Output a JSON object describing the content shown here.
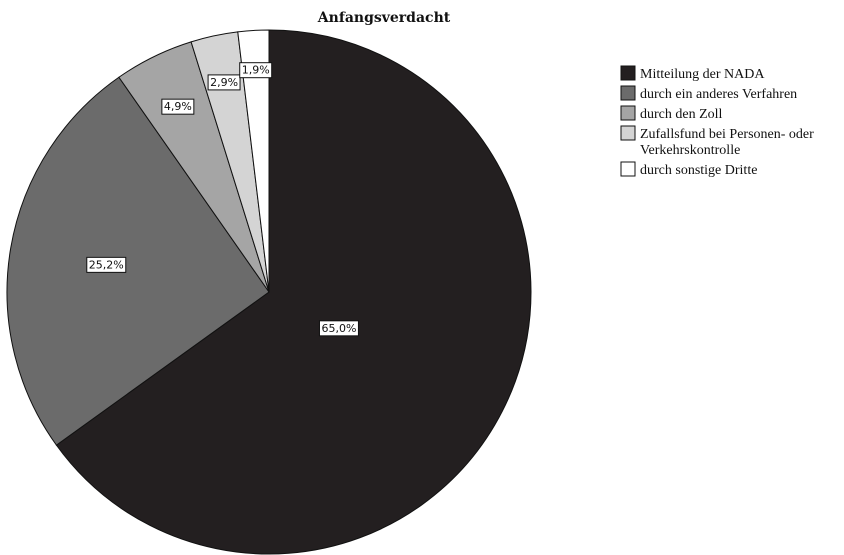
{
  "chart_data": {
    "type": "pie",
    "title": "Anfangsverdacht",
    "start_angle_deg": 0,
    "direction": "clockwise",
    "slices": [
      {
        "label": "Mitteilung der NADA",
        "value": 65.0,
        "display": "65,0%",
        "color": "#231f20"
      },
      {
        "label": "durch ein anderes Verfahren",
        "value": 25.2,
        "display": "25,2%",
        "color": "#6b6b6b"
      },
      {
        "label": "durch den Zoll",
        "value": 4.9,
        "display": "4,9%",
        "color": "#a5a5a5"
      },
      {
        "label": "Zufallsfund bei Personen- oder Verkehrskontrolle",
        "value": 2.9,
        "display": "2,9%",
        "color": "#d4d4d4"
      },
      {
        "label": "durch sonstige Dritte",
        "value": 1.9,
        "display": "1,9%",
        "color": "#ffffff"
      }
    ],
    "legend": {
      "position": "right",
      "entries": [
        {
          "lines": [
            "Mitteilung der NADA"
          ]
        },
        {
          "lines": [
            "durch ein anderes Verfahren"
          ]
        },
        {
          "lines": [
            "durch den Zoll"
          ]
        },
        {
          "lines": [
            "Zufallsfund bei Personen- oder",
            "Verkehrskontrolle"
          ]
        },
        {
          "lines": [
            "durch sonstige Dritte"
          ]
        }
      ]
    }
  }
}
